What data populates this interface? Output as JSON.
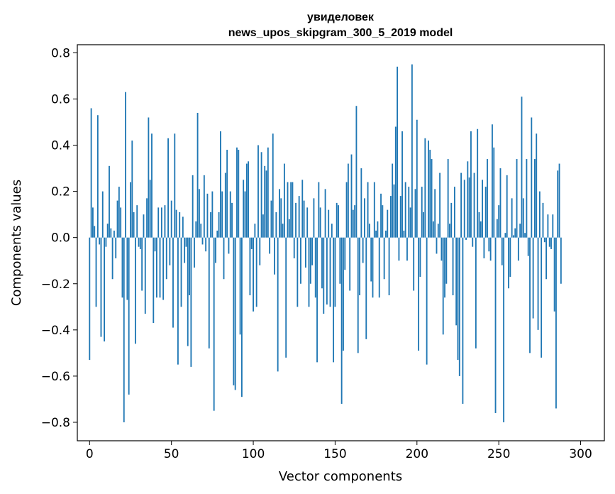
{
  "chart_data": {
    "type": "bar",
    "title": "увиделовек",
    "subtitle": "news_upos_skipgram_300_5_2019 model",
    "xlabel": "Vector components",
    "ylabel": "Components values",
    "xlim": [
      -7.5,
      314.5
    ],
    "ylim": [
      -0.88,
      0.835
    ],
    "x_ticks": [
      0,
      50,
      100,
      150,
      200,
      250,
      300
    ],
    "y_ticks": [
      -0.8,
      -0.6,
      -0.4,
      -0.2,
      0.0,
      0.2,
      0.4,
      0.6,
      0.8
    ],
    "y_tick_labels": [
      "−0.8",
      "−0.6",
      "−0.4",
      "−0.2",
      "0.0",
      "0.2",
      "0.4",
      "0.6",
      "0.8"
    ],
    "bar_color": "#1f77b4",
    "values": [
      -0.53,
      0.56,
      0.13,
      0.05,
      -0.3,
      0.53,
      -0.03,
      -0.43,
      0.2,
      -0.45,
      -0.04,
      0.06,
      0.31,
      0.04,
      -0.18,
      0.03,
      -0.09,
      0.16,
      0.22,
      0.13,
      -0.26,
      -0.8,
      0.63,
      -0.27,
      -0.68,
      0.24,
      0.42,
      0.11,
      -0.46,
      0.14,
      -0.04,
      -0.05,
      -0.23,
      0.1,
      -0.33,
      0.17,
      0.52,
      0.25,
      0.45,
      -0.37,
      -0.06,
      -0.26,
      0.13,
      -0.26,
      0.13,
      -0.27,
      0.14,
      -0.18,
      0.43,
      -0.12,
      0.16,
      -0.39,
      0.45,
      0.12,
      -0.55,
      0.11,
      -0.3,
      0.09,
      -0.11,
      -0.04,
      -0.47,
      -0.25,
      -0.56,
      0.27,
      -0.13,
      0.07,
      0.54,
      0.21,
      0.06,
      -0.03,
      0.27,
      -0.06,
      0.19,
      -0.48,
      0.11,
      0.2,
      -0.75,
      -0.11,
      0.03,
      0.11,
      0.46,
      0.2,
      -0.18,
      0.28,
      0.38,
      -0.07,
      0.2,
      0.15,
      -0.64,
      -0.66,
      0.39,
      0.38,
      -0.42,
      -0.69,
      0.25,
      0.2,
      0.32,
      0.33,
      -0.25,
      -0.05,
      -0.32,
      0.06,
      -0.3,
      0.4,
      -0.12,
      0.37,
      0.1,
      0.31,
      0.29,
      0.39,
      -0.07,
      0.16,
      0.45,
      -0.16,
      0.11,
      -0.58,
      0.21,
      0.17,
      0.06,
      0.32,
      -0.52,
      0.24,
      0.08,
      0.24,
      0.24,
      -0.09,
      0.15,
      -0.3,
      0.18,
      -0.2,
      0.25,
      0.16,
      -0.13,
      0.13,
      -0.3,
      -0.2,
      -0.12,
      0.17,
      -0.26,
      -0.54,
      0.24,
      0.13,
      -0.22,
      -0.33,
      0.21,
      -0.29,
      0.12,
      -0.3,
      0.06,
      -0.54,
      -0.3,
      0.15,
      0.14,
      -0.2,
      -0.72,
      -0.49,
      -0.14,
      0.24,
      0.32,
      -0.23,
      0.36,
      0.12,
      0.14,
      0.57,
      -0.5,
      -0.25,
      0.3,
      -0.11,
      0.17,
      -0.44,
      0.24,
      0.06,
      -0.19,
      -0.26,
      0.24,
      0.03,
      0.07,
      -0.26,
      0.19,
      0.14,
      -0.18,
      0.03,
      0.12,
      -0.25,
      0.18,
      0.32,
      0.23,
      0.48,
      0.74,
      -0.1,
      0.18,
      0.46,
      0.03,
      0.24,
      -0.1,
      0.22,
      0.13,
      0.75,
      -0.23,
      0.21,
      0.51,
      -0.49,
      -0.17,
      0.22,
      0.11,
      0.43,
      -0.55,
      0.42,
      0.38,
      0.34,
      0.07,
      0.21,
      -0.07,
      0.06,
      0.28,
      -0.1,
      -0.42,
      -0.26,
      -0.2,
      0.34,
      0.06,
      0.15,
      -0.25,
      0.22,
      -0.38,
      -0.53,
      -0.6,
      0.28,
      -0.72,
      0.25,
      -0.01,
      0.33,
      0.26,
      0.46,
      -0.04,
      0.28,
      -0.48,
      0.47,
      0.11,
      0.07,
      0.25,
      -0.09,
      0.22,
      0.34,
      -0.06,
      -0.1,
      0.49,
      0.39,
      -0.76,
      0.08,
      0.14,
      0.3,
      -0.12,
      -0.8,
      0.02,
      0.27,
      -0.22,
      -0.17,
      0.17,
      0.01,
      0.04,
      0.34,
      -0.1,
      0.06,
      0.61,
      0.17,
      0.02,
      0.34,
      -0.08,
      -0.5,
      0.52,
      -0.35,
      0.34,
      0.45,
      -0.4,
      0.2,
      -0.52,
      0.15,
      -0.02,
      -0.18,
      0.1,
      -0.04,
      -0.05,
      0.1,
      -0.32,
      -0.74,
      0.29,
      0.32,
      -0.2
    ]
  }
}
